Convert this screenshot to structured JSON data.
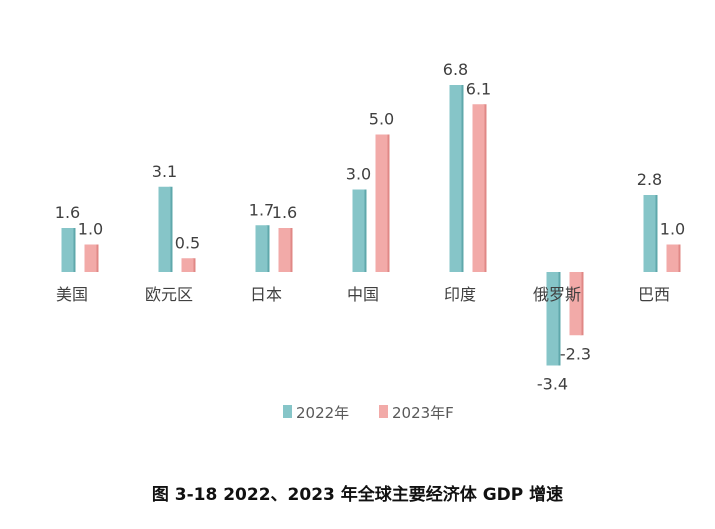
{
  "caption": "图 3-18 2022、2023 年全球主要经济体 GDP 增速",
  "colors": {
    "series_2022": "#86c5c8",
    "series_2023": "#f2aaa8"
  },
  "chart_data": {
    "type": "bar",
    "categories": [
      "美国",
      "欧元区",
      "日本",
      "中国",
      "印度",
      "俄罗斯",
      "巴西"
    ],
    "series": [
      {
        "name": "2022年",
        "values": [
          1.6,
          3.1,
          1.7,
          3.0,
          6.8,
          -3.4,
          2.8
        ],
        "labels": [
          "1.6",
          "3.1",
          "1.7",
          "3.0",
          "6.8",
          "-3.4",
          "2.8"
        ]
      },
      {
        "name": "2023年F",
        "values": [
          1.0,
          0.5,
          1.6,
          5.0,
          6.1,
          -2.3,
          1.0
        ],
        "labels": [
          "1.0",
          "0.5",
          "1.6",
          "5.0",
          "6.1",
          "-2.3",
          "1.0"
        ]
      }
    ],
    "legend": "bottom",
    "grid": false,
    "ylim": [
      -3.4,
      6.8
    ]
  }
}
